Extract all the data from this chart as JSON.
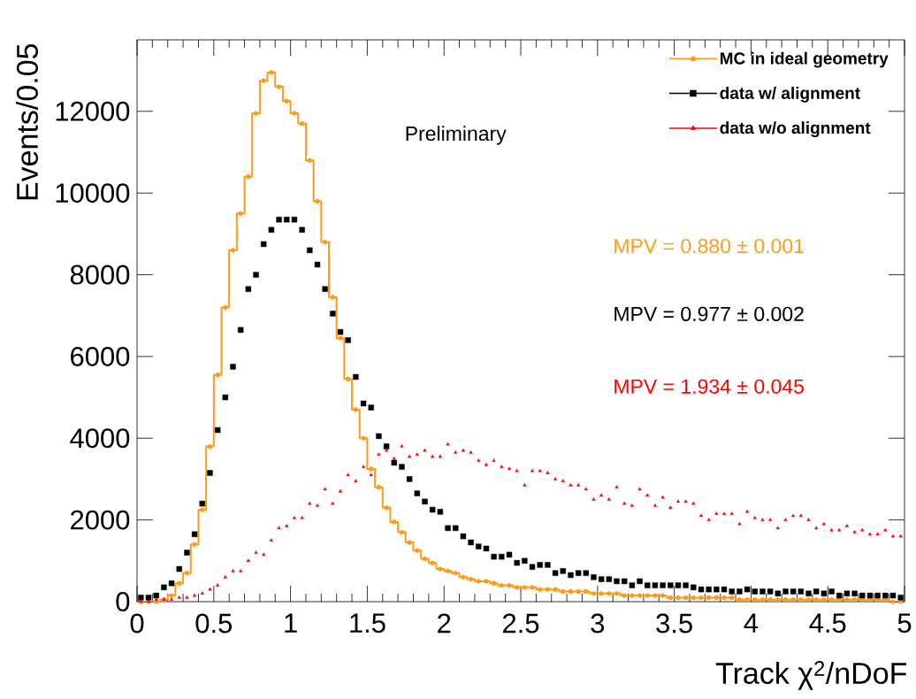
{
  "chart_data": {
    "type": "scatter",
    "xlabel": "Track χ$^{2}$/nDoF",
    "ylabel": "Events/0.05",
    "annotations": [
      "Preliminary",
      "MPV = 0.880 ± 0.001",
      "MPV = 0.977 ± 0.002",
      "MPV = 1.934 ± 0.045"
    ],
    "x": [
      0.025,
      0.075,
      0.125,
      0.175,
      0.225,
      0.275,
      0.325,
      0.375,
      0.425,
      0.475,
      0.525,
      0.575,
      0.625,
      0.675,
      0.725,
      0.775,
      0.825,
      0.875,
      0.925,
      0.975,
      1.025,
      1.075,
      1.125,
      1.175,
      1.225,
      1.275,
      1.325,
      1.375,
      1.425,
      1.475,
      1.525,
      1.575,
      1.625,
      1.675,
      1.725,
      1.775,
      1.825,
      1.875,
      1.925,
      1.975,
      2.025,
      2.075,
      2.125,
      2.175,
      2.225,
      2.275,
      2.325,
      2.375,
      2.425,
      2.475,
      2.525,
      2.575,
      2.625,
      2.675,
      2.725,
      2.775,
      2.825,
      2.875,
      2.925,
      2.975,
      3.025,
      3.075,
      3.125,
      3.175,
      3.225,
      3.275,
      3.325,
      3.375,
      3.425,
      3.475,
      3.525,
      3.575,
      3.625,
      3.675,
      3.725,
      3.775,
      3.825,
      3.875,
      3.925,
      3.975,
      4.025,
      4.075,
      4.125,
      4.175,
      4.225,
      4.275,
      4.325,
      4.375,
      4.425,
      4.475,
      4.525,
      4.575,
      4.625,
      4.675,
      4.725,
      4.775,
      4.825,
      4.875,
      4.925,
      4.975
    ],
    "series": [
      {
        "name": "MC in ideal geometry",
        "color": "#ff9a1a",
        "type": "step",
        "marker": "circle",
        "values": [
          0,
          0,
          0,
          50,
          150,
          450,
          700,
          1400,
          2250,
          3800,
          5550,
          7200,
          8600,
          9500,
          10400,
          11950,
          12750,
          12950,
          12600,
          12250,
          11950,
          11700,
          10800,
          9800,
          8800,
          7450,
          6450,
          5450,
          4700,
          4000,
          3250,
          2800,
          2300,
          1950,
          1700,
          1450,
          1250,
          1050,
          950,
          800,
          750,
          700,
          600,
          550,
          500,
          500,
          450,
          400,
          400,
          350,
          350,
          350,
          300,
          300,
          300,
          250,
          250,
          250,
          250,
          200,
          200,
          200,
          200,
          150,
          150,
          150,
          150,
          150,
          150,
          100,
          100,
          100,
          100,
          100,
          100,
          100,
          100,
          100,
          50,
          50,
          50,
          50,
          50,
          50,
          50,
          50,
          50,
          50,
          50,
          50,
          50,
          50,
          50,
          50,
          50,
          50,
          50,
          50,
          0,
          0
        ]
      },
      {
        "name": "data w/ alignment",
        "color": "#000000",
        "type": "scatter",
        "marker": "square",
        "values": [
          100,
          100,
          150,
          350,
          450,
          800,
          1200,
          1650,
          2400,
          3150,
          4200,
          5000,
          5750,
          6650,
          7650,
          8000,
          8750,
          9100,
          9350,
          9350,
          9350,
          9100,
          8600,
          8250,
          7650,
          7050,
          6600,
          6400,
          5500,
          4850,
          4750,
          4050,
          3800,
          3400,
          3300,
          3000,
          2650,
          2450,
          2250,
          2200,
          1800,
          1800,
          1600,
          1450,
          1350,
          1300,
          1100,
          1100,
          1150,
          950,
          1000,
          850,
          900,
          900,
          700,
          750,
          650,
          700,
          700,
          600,
          550,
          550,
          500,
          500,
          400,
          500,
          400,
          400,
          400,
          400,
          400,
          400,
          350,
          300,
          300,
          300,
          300,
          250,
          250,
          300,
          250,
          250,
          250,
          200,
          250,
          250,
          250,
          200,
          250,
          200,
          250,
          150,
          200,
          200,
          150,
          150,
          150,
          150,
          150,
          100
        ]
      },
      {
        "name": "data w/o alignment",
        "color": "#ff0000",
        "type": "scatter",
        "marker": "triangle",
        "values": [
          0,
          0,
          50,
          50,
          50,
          100,
          100,
          150,
          200,
          300,
          400,
          600,
          750,
          750,
          1000,
          1200,
          1150,
          1500,
          1800,
          1850,
          2050,
          2050,
          2400,
          2350,
          2750,
          2400,
          2700,
          3100,
          2950,
          3300,
          3100,
          3600,
          3700,
          3500,
          3800,
          3550,
          3600,
          3700,
          3550,
          3550,
          3850,
          3650,
          3700,
          3650,
          3450,
          3350,
          3450,
          3300,
          3250,
          3200,
          2850,
          3200,
          3200,
          3150,
          3000,
          2950,
          2850,
          2850,
          2750,
          2500,
          2600,
          2500,
          2800,
          2400,
          2350,
          2750,
          2600,
          2350,
          2550,
          2300,
          2450,
          2450,
          2400,
          2100,
          2000,
          2150,
          2150,
          2150,
          1900,
          2200,
          2050,
          2000,
          2000,
          1800,
          2000,
          2100,
          2100,
          2000,
          1800,
          1900,
          1750,
          1750,
          1850,
          1700,
          1750,
          1650,
          1650,
          1750,
          1600,
          1600
        ]
      }
    ],
    "xlim": [
      0,
      5
    ],
    "ylim": [
      0,
      13750
    ],
    "xticks": [
      0,
      0.5,
      1,
      1.5,
      2,
      2.5,
      3,
      3.5,
      4,
      4.5,
      5
    ],
    "yticks": [
      0,
      2000,
      4000,
      6000,
      8000,
      10000,
      12000
    ],
    "legend": "top right"
  }
}
